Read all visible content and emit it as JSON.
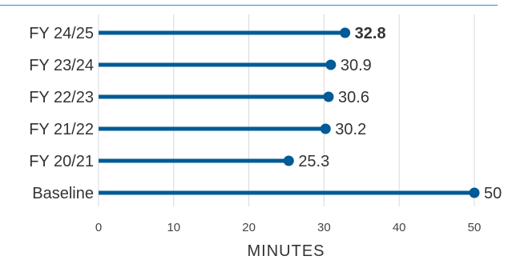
{
  "colors": {
    "accent": "#005b96",
    "top_rule": "#1f8fd6",
    "grid": "#d9d9d9",
    "text": "#333333"
  },
  "chart_data": {
    "type": "lollipop",
    "orientation": "horizontal",
    "categories": [
      "FY 24/25",
      "FY 23/24",
      "FY 22/23",
      "FY 21/22",
      "FY 20/21",
      "Baseline"
    ],
    "values": [
      32.8,
      30.9,
      30.6,
      30.2,
      25.3,
      50
    ],
    "value_labels": [
      "32.8",
      "30.9",
      "30.6",
      "30.2",
      "25.3",
      "50"
    ],
    "highlight_index": 0,
    "xlabel": "MINUTES",
    "xlim": [
      0,
      50
    ],
    "xticks": [
      0,
      10,
      20,
      30,
      40,
      50
    ],
    "grid": "vertical"
  }
}
